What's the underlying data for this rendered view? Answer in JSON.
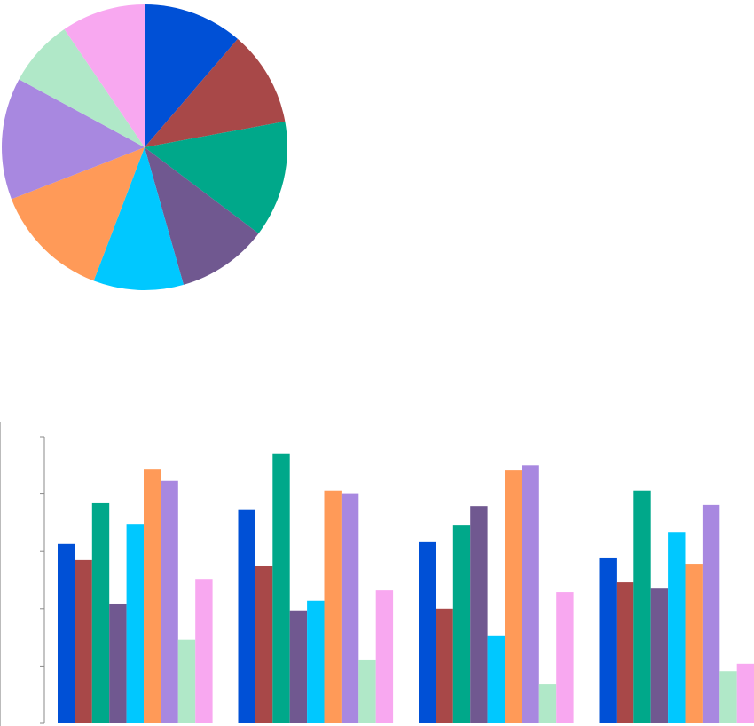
{
  "chart_data": [
    {
      "type": "pie",
      "values": [
        11.3,
        10.8,
        13.2,
        10.3,
        10.2,
        13.3,
        13.8,
        7.6,
        9.5
      ],
      "colors": [
        "#0050d6",
        "#a84848",
        "#00a88a",
        "#705890",
        "#00c8ff",
        "#ff9a58",
        "#a888e0",
        "#b0e8c8",
        "#f8a8f0"
      ]
    },
    {
      "type": "bar",
      "categories": [
        null,
        null,
        null,
        null
      ],
      "ylim": [
        0,
        5
      ],
      "yticks": [
        0,
        1,
        2,
        3,
        4,
        5
      ],
      "series": [
        {
          "color": "#0050d6",
          "values": [
            3.13,
            3.72,
            3.16,
            2.88
          ]
        },
        {
          "color": "#a84848",
          "values": [
            2.85,
            2.74,
            2.0,
            2.46
          ]
        },
        {
          "color": "#00a88a",
          "values": [
            3.84,
            4.71,
            3.45,
            4.06
          ]
        },
        {
          "color": "#705890",
          "values": [
            2.09,
            1.97,
            3.79,
            2.35
          ]
        },
        {
          "color": "#00c8ff",
          "values": [
            3.48,
            2.14,
            1.52,
            3.34
          ]
        },
        {
          "color": "#ff9a58",
          "values": [
            4.44,
            4.06,
            4.41,
            2.77
          ]
        },
        {
          "color": "#a888e0",
          "values": [
            4.23,
            4.0,
            4.5,
            3.81
          ]
        },
        {
          "color": "#b0e8c8",
          "values": [
            1.46,
            1.1,
            0.68,
            0.91
          ]
        },
        {
          "color": "#f8a8f0",
          "values": [
            2.52,
            2.32,
            2.29,
            1.04
          ]
        }
      ]
    }
  ]
}
